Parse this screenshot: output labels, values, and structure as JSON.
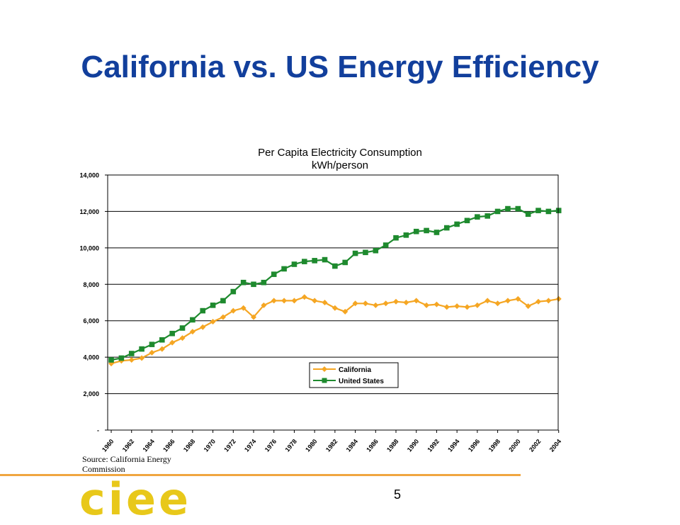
{
  "slide": {
    "title": "California vs. US Energy Efficiency",
    "source": "Source: California Energy Commission",
    "logo": "ciee",
    "page_number": "5"
  },
  "colors": {
    "title": "#123f9c",
    "california": "#f5a623",
    "us": "#1e8a2e",
    "rule": "#f0a640",
    "logo": "#e8c81a"
  },
  "chart_data": {
    "type": "line",
    "title": "Per Capita Electricity Consumption",
    "subtitle": "kWh/person",
    "xlabel": "",
    "ylabel": "",
    "x": [
      1960,
      1961,
      1962,
      1963,
      1964,
      1965,
      1966,
      1967,
      1968,
      1969,
      1970,
      1971,
      1972,
      1973,
      1974,
      1975,
      1976,
      1977,
      1978,
      1979,
      1980,
      1981,
      1982,
      1983,
      1984,
      1985,
      1986,
      1987,
      1988,
      1989,
      1990,
      1991,
      1992,
      1993,
      1994,
      1995,
      1996,
      1997,
      1998,
      1999,
      2000,
      2001,
      2002,
      2003,
      2004
    ],
    "x_tick_labels": [
      "1960",
      "1962",
      "1964",
      "1966",
      "1968",
      "1970",
      "1972",
      "1974",
      "1976",
      "1978",
      "1980",
      "1982",
      "1984",
      "1986",
      "1988",
      "1990",
      "1992",
      "1994",
      "1996",
      "1998",
      "2000",
      "2002",
      "2004"
    ],
    "ylim": [
      0,
      14000
    ],
    "y_tick_labels": [
      "-",
      "2,000",
      "4,000",
      "6,000",
      "8,000",
      "10,000",
      "12,000",
      "14,000"
    ],
    "grid": "horizontal",
    "legend_position": "right-center",
    "series": [
      {
        "name": "California",
        "marker": "diamond",
        "color": "#f5a623",
        "values": [
          3650,
          3800,
          3850,
          3950,
          4250,
          4450,
          4800,
          5050,
          5400,
          5650,
          5950,
          6200,
          6550,
          6700,
          6200,
          6850,
          7100,
          7100,
          7100,
          7300,
          7100,
          7000,
          6700,
          6500,
          6950,
          6950,
          6850,
          6950,
          7050,
          7000,
          7100,
          6850,
          6900,
          6750,
          6800,
          6750,
          6850,
          7100,
          6950,
          7100,
          7200,
          6800,
          7050,
          7100,
          7200
        ]
      },
      {
        "name": "United States",
        "marker": "square",
        "color": "#1e8a2e",
        "values": [
          3850,
          3950,
          4200,
          4450,
          4700,
          4950,
          5300,
          5600,
          6050,
          6550,
          6850,
          7100,
          7600,
          8100,
          8000,
          8100,
          8550,
          8850,
          9100,
          9250,
          9300,
          9350,
          9000,
          9200,
          9700,
          9750,
          9850,
          10150,
          10550,
          10700,
          10900,
          10950,
          10850,
          11100,
          11300,
          11500,
          11700,
          11750,
          12000,
          12150,
          12150,
          11850,
          12050,
          12000,
          12050
        ]
      }
    ]
  }
}
